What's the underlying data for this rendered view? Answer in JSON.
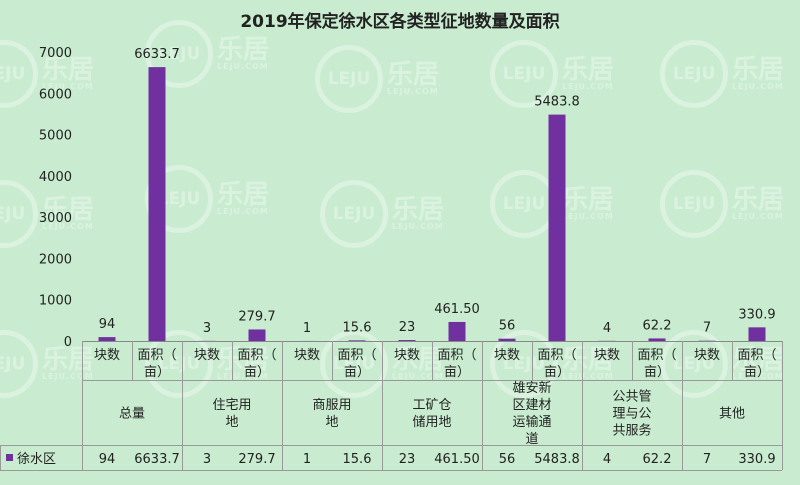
{
  "chart_data": {
    "type": "bar",
    "title": "2019年保定徐水区各类型征地数量及面积",
    "groups": [
      {
        "name": "总量",
        "lines": [
          "总量"
        ]
      },
      {
        "name": "住宅用地",
        "lines": [
          "住宅用",
          "地"
        ]
      },
      {
        "name": "商服用地",
        "lines": [
          "商服用",
          "地"
        ]
      },
      {
        "name": "工矿仓储用地",
        "lines": [
          "工矿仓",
          "储用地"
        ]
      },
      {
        "name": "雄安新区建材运输通道",
        "lines": [
          "雄安新",
          "区建材",
          "运输通",
          "道"
        ]
      },
      {
        "name": "公共管理与公共服务",
        "lines": [
          "公共管",
          "理与公",
          "共服务"
        ]
      },
      {
        "name": "其他",
        "lines": [
          "其他"
        ]
      }
    ],
    "subcategories": [
      {
        "name": "块数",
        "lines": [
          "块数"
        ]
      },
      {
        "name": "面积（亩）",
        "lines": [
          "面积（",
          "亩）"
        ]
      }
    ],
    "series": [
      {
        "name": "徐水区",
        "color": "#7030a0",
        "values": [
          94,
          6633.7,
          3,
          279.7,
          1,
          15.6,
          23,
          461.5,
          56,
          5483.8,
          4,
          62.2,
          7,
          330.9
        ],
        "labels": [
          "94",
          "6633.7",
          "3",
          "279.7",
          "1",
          "15.6",
          "23",
          "461.50",
          "56",
          "5483.8",
          "4",
          "62.2",
          "7",
          "330.9"
        ]
      }
    ],
    "ylim": [
      0,
      7000
    ],
    "yticks": [
      0,
      1000,
      2000,
      3000,
      4000,
      5000,
      6000,
      7000
    ],
    "grid": false,
    "legend": "bottom-left table"
  },
  "watermark": {
    "ring": "LEJU",
    "text": "乐居",
    "sub": "LEJU.COM"
  }
}
